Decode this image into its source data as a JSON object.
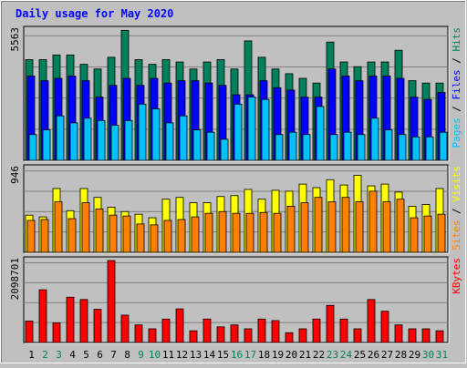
{
  "chart_data": {
    "type": "bar",
    "title": "Daily usage for May 2020",
    "colors": {
      "background": "#c0c0c0",
      "title": "#0000ff",
      "hits": "#00805c",
      "files": "#0000ff",
      "pages": "#00c0ff",
      "visits": "#ffff00",
      "sites": "#ff8000",
      "kbytes": "#ff0000",
      "grid": "#808080",
      "weekend_label": "#00805c",
      "weekday_label": "#000000"
    },
    "x_labels": [
      "1",
      "2",
      "3",
      "4",
      "5",
      "6",
      "7",
      "8",
      "9",
      "10",
      "11",
      "12",
      "13",
      "14",
      "15",
      "16",
      "17",
      "18",
      "19",
      "20",
      "21",
      "22",
      "23",
      "24",
      "25",
      "26",
      "27",
      "28",
      "29",
      "30",
      "31"
    ],
    "weekend_days": [
      2,
      3,
      9,
      10,
      16,
      17,
      23,
      24,
      30,
      31
    ],
    "panels": [
      {
        "id": "hits-files-pages",
        "ymax_label": "5563",
        "ymax": 5563,
        "legend": [
          {
            "text": "Pages",
            "color": "#00c0ff"
          },
          {
            "text": " / ",
            "color": "#000000"
          },
          {
            "text": "Files",
            "color": "#0000ff"
          },
          {
            "text": " / ",
            "color": "#000000"
          },
          {
            "text": "Hits",
            "color": "#00805c"
          }
        ],
        "series": [
          {
            "name": "Hits",
            "color": "#00805c",
            "values": [
              4300,
              4300,
              4500,
              4500,
              4100,
              3900,
              4400,
              5550,
              4300,
              4100,
              4300,
              4200,
              3900,
              4200,
              4300,
              3900,
              5100,
              4400,
              3900,
              3700,
              3500,
              3300,
              5050,
              4200,
              4000,
              4200,
              4200,
              4700,
              3400,
              3300,
              3300
            ]
          },
          {
            "name": "Files",
            "color": "#0000ff",
            "values": [
              3600,
              3400,
              3500,
              3600,
              3400,
              2700,
              3200,
              3500,
              3200,
              3500,
              3300,
              3400,
              3400,
              3300,
              3200,
              2800,
              2800,
              3400,
              3100,
              3000,
              2700,
              2700,
              3900,
              3600,
              3400,
              3600,
              3600,
              3500,
              2700,
              2600,
              2900
            ]
          },
          {
            "name": "Pages",
            "color": "#00c0ff",
            "values": [
              1100,
              1300,
              1900,
              1600,
              1800,
              1700,
              1500,
              1700,
              2400,
              2200,
              1600,
              1900,
              1300,
              1200,
              900,
              2400,
              2700,
              2600,
              1100,
              1200,
              1100,
              2300,
              1100,
              1200,
              1100,
              1800,
              1300,
              1100,
              1000,
              1000,
              1200
            ]
          }
        ]
      },
      {
        "id": "visits-sites",
        "ymax_label": "946",
        "ymax": 946,
        "legend": [
          {
            "text": "Sites",
            "color": "#ff8000"
          },
          {
            "text": " / ",
            "color": "#000000"
          },
          {
            "text": "Visits",
            "color": "#ffff00"
          }
        ],
        "series": [
          {
            "name": "Visits",
            "color": "#ffff00",
            "values": [
              420,
              400,
              720,
              470,
              720,
              620,
              510,
              460,
              430,
              390,
              600,
              620,
              560,
              560,
              630,
              640,
              710,
              600,
              700,
              690,
              770,
              730,
              820,
              760,
              870,
              750,
              770,
              680,
              520,
              540,
              720
            ]
          },
          {
            "name": "Sites",
            "color": "#ff8000",
            "values": [
              360,
              370,
              570,
              380,
              560,
              490,
              420,
              410,
              320,
              310,
              360,
              370,
              400,
              440,
              460,
              440,
              440,
              450,
              440,
              520,
              560,
              620,
              570,
              620,
              570,
              690,
              570,
              600,
              390,
              410,
              430
            ]
          }
        ]
      },
      {
        "id": "kbytes",
        "ymax_label": "2098701",
        "ymax": 2098701,
        "legend": [
          {
            "text": "KBytes",
            "color": "#ff0000"
          }
        ],
        "series": [
          {
            "name": "KBytes",
            "color": "#ff0000",
            "values": [
              550000,
              1350000,
              500000,
              1160000,
              1100000,
              850000,
              2098701,
              700000,
              450000,
              350000,
              600000,
              860000,
              300000,
              600000,
              400000,
              450000,
              350000,
              600000,
              560000,
              250000,
              350000,
              600000,
              950000,
              600000,
              350000,
              1100000,
              800000,
              450000,
              350000,
              350000,
              300000
            ]
          }
        ]
      }
    ]
  }
}
